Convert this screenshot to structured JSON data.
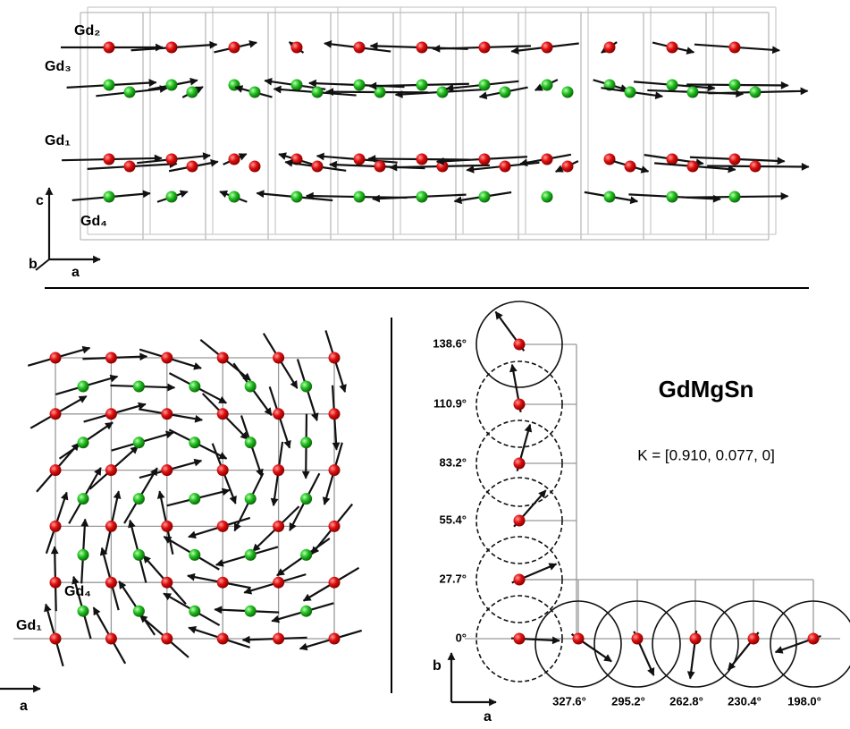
{
  "top": {
    "gd2": "Gd₂",
    "gd3": "Gd₃",
    "gd1": "Gd₁",
    "gd4": "Gd₄",
    "c": "c",
    "b": "b",
    "a": "a"
  },
  "bottom_left": {
    "gd4": "Gd₄",
    "gd1": "Gd₁",
    "a": "a"
  },
  "bottom_right": {
    "title": "GdMgSn",
    "k_vector": "K = [0.910, 0.077, 0]",
    "b": "b",
    "a": "a",
    "vertical_angles": [
      "138.6°",
      "110.9°",
      "83.2°",
      "55.4°",
      "27.7°",
      "0°"
    ],
    "horizontal_angles": [
      "327.6°",
      "295.2°",
      "262.8°",
      "230.4°",
      "198.0°"
    ]
  }
}
